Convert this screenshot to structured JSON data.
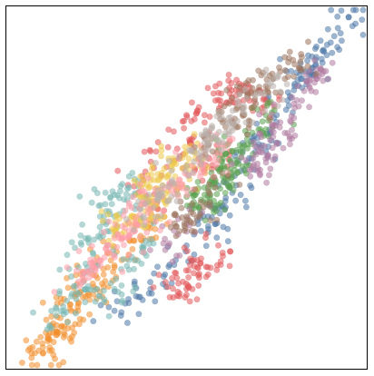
{
  "chart_data": {
    "type": "scatter",
    "title": "",
    "xlabel": "",
    "ylabel": "",
    "xlim": [
      0,
      1
    ],
    "ylim": [
      0,
      1
    ],
    "grid": false,
    "legend": "none",
    "axes_ticks": "hidden",
    "marker_alpha": 0.55,
    "description_of_distribution": "",
    "series": [
      {
        "color": "#4e79a7",
        "center": [
          0.64,
          0.52
        ],
        "count": 200,
        "points": [
          [
            0.97,
            0.99
          ],
          [
            0.95,
            0.97
          ],
          [
            0.92,
            0.94
          ],
          [
            0.9,
            0.9
          ],
          [
            0.88,
            0.88
          ],
          [
            0.86,
            0.86
          ],
          [
            0.85,
            0.83
          ],
          [
            0.83,
            0.82
          ],
          [
            0.82,
            0.8
          ],
          [
            0.8,
            0.78
          ],
          [
            0.78,
            0.74
          ],
          [
            0.75,
            0.7
          ],
          [
            0.73,
            0.66
          ],
          [
            0.7,
            0.62
          ],
          [
            0.68,
            0.58
          ],
          [
            0.66,
            0.55
          ],
          [
            0.62,
            0.5
          ],
          [
            0.6,
            0.45
          ],
          [
            0.56,
            0.42
          ],
          [
            0.54,
            0.38
          ],
          [
            0.5,
            0.34
          ],
          [
            0.47,
            0.3
          ],
          [
            0.44,
            0.26
          ],
          [
            0.4,
            0.22
          ],
          [
            0.36,
            0.2
          ],
          [
            0.33,
            0.18
          ],
          [
            0.3,
            0.16
          ],
          [
            0.72,
            0.6
          ],
          [
            0.65,
            0.48
          ],
          [
            0.58,
            0.4
          ]
        ]
      },
      {
        "color": "#f28e2b",
        "center": [
          0.23,
          0.24
        ],
        "count": 160,
        "points": [
          [
            0.07,
            0.03
          ],
          [
            0.09,
            0.05
          ],
          [
            0.1,
            0.07
          ],
          [
            0.12,
            0.08
          ],
          [
            0.13,
            0.1
          ],
          [
            0.14,
            0.12
          ],
          [
            0.16,
            0.1
          ],
          [
            0.15,
            0.14
          ],
          [
            0.18,
            0.16
          ],
          [
            0.2,
            0.18
          ],
          [
            0.22,
            0.2
          ],
          [
            0.25,
            0.22
          ],
          [
            0.27,
            0.26
          ],
          [
            0.3,
            0.28
          ],
          [
            0.32,
            0.3
          ],
          [
            0.35,
            0.33
          ],
          [
            0.38,
            0.36
          ],
          [
            0.4,
            0.4
          ],
          [
            0.42,
            0.42
          ],
          [
            0.28,
            0.32
          ],
          [
            0.24,
            0.26
          ],
          [
            0.19,
            0.2
          ],
          [
            0.12,
            0.05
          ],
          [
            0.17,
            0.13
          ]
        ]
      },
      {
        "color": "#e15759",
        "center": [
          0.45,
          0.52
        ],
        "count": 200,
        "points": [
          [
            0.4,
            0.6
          ],
          [
            0.45,
            0.66
          ],
          [
            0.5,
            0.7
          ],
          [
            0.55,
            0.7
          ],
          [
            0.58,
            0.74
          ],
          [
            0.62,
            0.76
          ],
          [
            0.66,
            0.78
          ],
          [
            0.52,
            0.64
          ],
          [
            0.48,
            0.58
          ],
          [
            0.56,
            0.26
          ],
          [
            0.6,
            0.32
          ],
          [
            0.52,
            0.3
          ],
          [
            0.5,
            0.22
          ],
          [
            0.46,
            0.25
          ],
          [
            0.42,
            0.44
          ],
          [
            0.38,
            0.52
          ],
          [
            0.55,
            0.55
          ],
          [
            0.62,
            0.6
          ],
          [
            0.68,
            0.72
          ],
          [
            0.72,
            0.74
          ],
          [
            0.48,
            0.2
          ],
          [
            0.53,
            0.28
          ]
        ]
      },
      {
        "color": "#76b7b2",
        "center": [
          0.32,
          0.38
        ],
        "count": 160,
        "points": [
          [
            0.22,
            0.36
          ],
          [
            0.26,
            0.42
          ],
          [
            0.3,
            0.48
          ],
          [
            0.34,
            0.5
          ],
          [
            0.36,
            0.45
          ],
          [
            0.3,
            0.42
          ],
          [
            0.28,
            0.38
          ],
          [
            0.24,
            0.32
          ],
          [
            0.2,
            0.28
          ],
          [
            0.26,
            0.2
          ],
          [
            0.3,
            0.22
          ],
          [
            0.34,
            0.3
          ],
          [
            0.38,
            0.34
          ],
          [
            0.22,
            0.22
          ],
          [
            0.18,
            0.2
          ],
          [
            0.16,
            0.16
          ],
          [
            0.12,
            0.12
          ]
        ]
      },
      {
        "color": "#59a14f",
        "center": [
          0.6,
          0.52
        ],
        "count": 140,
        "points": [
          [
            0.55,
            0.48
          ],
          [
            0.58,
            0.52
          ],
          [
            0.62,
            0.55
          ],
          [
            0.65,
            0.6
          ],
          [
            0.68,
            0.62
          ],
          [
            0.7,
            0.66
          ],
          [
            0.6,
            0.58
          ],
          [
            0.56,
            0.5
          ],
          [
            0.52,
            0.46
          ],
          [
            0.64,
            0.54
          ],
          [
            0.72,
            0.7
          ],
          [
            0.58,
            0.45
          ],
          [
            0.62,
            0.5
          ]
        ]
      },
      {
        "color": "#edc948",
        "center": [
          0.42,
          0.48
        ],
        "count": 140,
        "points": [
          [
            0.38,
            0.48
          ],
          [
            0.42,
            0.52
          ],
          [
            0.46,
            0.55
          ],
          [
            0.4,
            0.44
          ],
          [
            0.44,
            0.46
          ],
          [
            0.36,
            0.42
          ],
          [
            0.48,
            0.5
          ],
          [
            0.5,
            0.56
          ],
          [
            0.34,
            0.4
          ],
          [
            0.4,
            0.52
          ],
          [
            0.45,
            0.58
          ],
          [
            0.52,
            0.6
          ],
          [
            0.3,
            0.38
          ]
        ]
      },
      {
        "color": "#b07aa1",
        "center": [
          0.72,
          0.62
        ],
        "count": 120,
        "points": [
          [
            0.7,
            0.6
          ],
          [
            0.74,
            0.64
          ],
          [
            0.76,
            0.68
          ],
          [
            0.8,
            0.72
          ],
          [
            0.84,
            0.78
          ],
          [
            0.86,
            0.8
          ],
          [
            0.78,
            0.65
          ],
          [
            0.72,
            0.58
          ],
          [
            0.68,
            0.55
          ],
          [
            0.82,
            0.74
          ],
          [
            0.88,
            0.82
          ],
          [
            0.75,
            0.62
          ],
          [
            0.5,
            0.4
          ],
          [
            0.45,
            0.34
          ]
        ]
      },
      {
        "color": "#ff9da7",
        "center": [
          0.36,
          0.38
        ],
        "count": 160,
        "points": [
          [
            0.2,
            0.24
          ],
          [
            0.24,
            0.28
          ],
          [
            0.28,
            0.32
          ],
          [
            0.32,
            0.36
          ],
          [
            0.36,
            0.4
          ],
          [
            0.4,
            0.44
          ],
          [
            0.44,
            0.5
          ],
          [
            0.48,
            0.52
          ],
          [
            0.52,
            0.54
          ],
          [
            0.3,
            0.36
          ],
          [
            0.26,
            0.3
          ],
          [
            0.34,
            0.38
          ],
          [
            0.56,
            0.58
          ],
          [
            0.6,
            0.62
          ],
          [
            0.38,
            0.46
          ],
          [
            0.42,
            0.48
          ]
        ]
      },
      {
        "color": "#9c755f",
        "center": [
          0.6,
          0.62
        ],
        "count": 140,
        "points": [
          [
            0.6,
            0.68
          ],
          [
            0.64,
            0.72
          ],
          [
            0.68,
            0.76
          ],
          [
            0.72,
            0.78
          ],
          [
            0.76,
            0.82
          ],
          [
            0.8,
            0.84
          ],
          [
            0.82,
            0.86
          ],
          [
            0.56,
            0.62
          ],
          [
            0.5,
            0.42
          ],
          [
            0.48,
            0.38
          ],
          [
            0.54,
            0.46
          ],
          [
            0.58,
            0.5
          ],
          [
            0.66,
            0.7
          ],
          [
            0.74,
            0.8
          ]
        ]
      },
      {
        "color": "#bab0ac",
        "center": [
          0.5,
          0.55
        ],
        "count": 120,
        "points": [
          [
            0.5,
            0.56
          ],
          [
            0.54,
            0.6
          ],
          [
            0.58,
            0.64
          ],
          [
            0.62,
            0.68
          ],
          [
            0.66,
            0.72
          ],
          [
            0.46,
            0.52
          ],
          [
            0.42,
            0.48
          ],
          [
            0.38,
            0.42
          ],
          [
            0.7,
            0.76
          ],
          [
            0.74,
            0.8
          ]
        ]
      }
    ]
  }
}
